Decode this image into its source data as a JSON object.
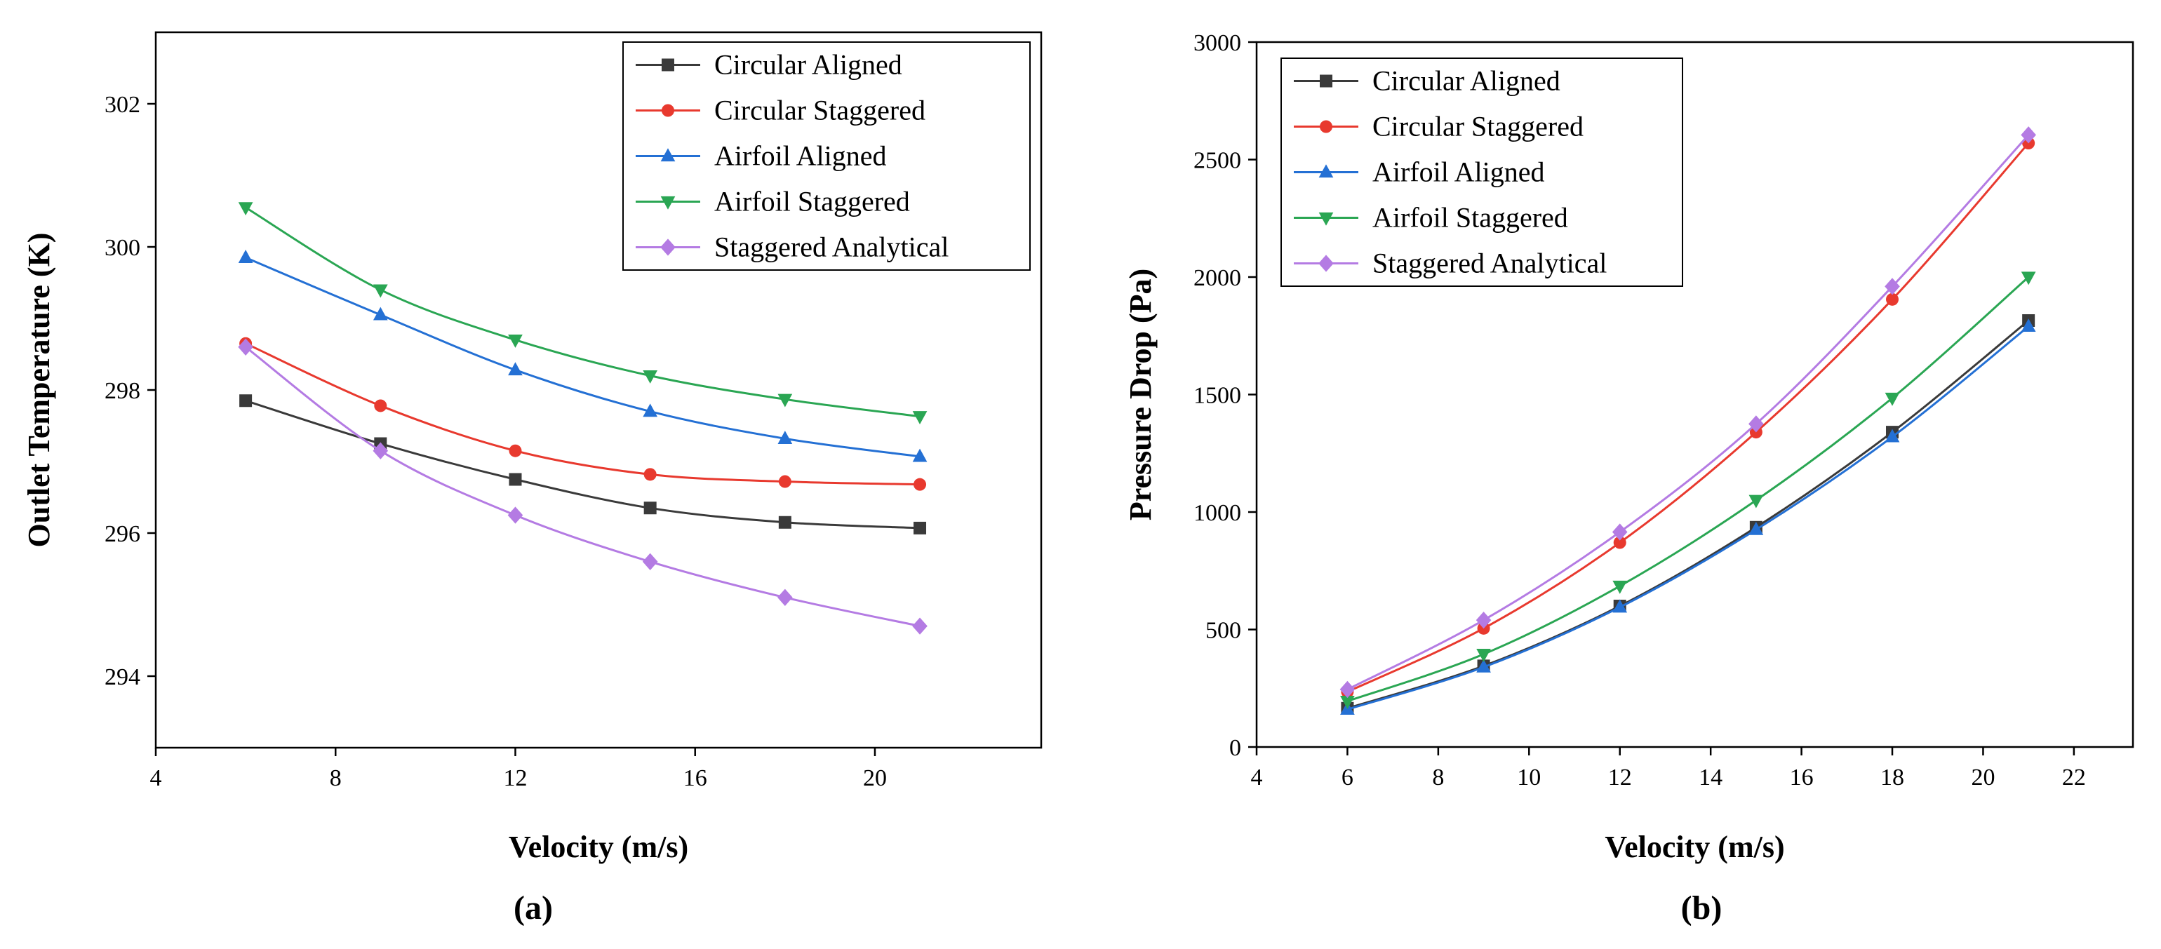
{
  "figure_labels": {
    "a": "(a)",
    "b": "(b)"
  },
  "chart_data": [
    {
      "id": "a",
      "type": "line",
      "panel_label": "(a)",
      "title": "",
      "xlabel": "Velocity (m/s)",
      "ylabel": "Outlet Temperature (K)",
      "xlim": [
        4,
        23.7
      ],
      "ylim": [
        293,
        303
      ],
      "xticks": [
        4,
        8,
        12,
        16,
        20
      ],
      "yticks": [
        294,
        296,
        298,
        300,
        302
      ],
      "legend_position": "top-right",
      "grid": false,
      "x": [
        6,
        9,
        12,
        15,
        18,
        21
      ],
      "series": [
        {
          "name": "Circular Aligned",
          "color": "#3a3a3a",
          "marker": "square",
          "values": [
            297.85,
            297.25,
            296.75,
            296.35,
            296.15,
            296.07
          ]
        },
        {
          "name": "Circular Staggered",
          "color": "#e8392e",
          "marker": "circle",
          "values": [
            298.65,
            297.78,
            297.15,
            296.82,
            296.72,
            296.68
          ]
        },
        {
          "name": "Airfoil Aligned",
          "color": "#2470d4",
          "marker": "triangle-up",
          "values": [
            299.85,
            299.05,
            298.28,
            297.7,
            297.32,
            297.07
          ]
        },
        {
          "name": "Airfoil Staggered",
          "color": "#2aa653",
          "marker": "triangle-down",
          "values": [
            300.55,
            299.4,
            298.7,
            298.2,
            297.87,
            297.63
          ]
        },
        {
          "name": "Staggered Analytical",
          "color": "#b47be3",
          "marker": "diamond",
          "values": [
            298.6,
            297.15,
            296.25,
            295.6,
            295.1,
            294.7
          ]
        }
      ]
    },
    {
      "id": "b",
      "type": "line",
      "panel_label": "(b)",
      "title": "",
      "xlabel": "Velocity (m/s)",
      "ylabel": "Pressure Drop (Pa)",
      "xlim": [
        4,
        23.3
      ],
      "ylim": [
        0,
        3000
      ],
      "xticks": [
        4,
        6,
        8,
        10,
        12,
        14,
        16,
        18,
        20,
        22
      ],
      "yticks": [
        0,
        500,
        1000,
        1500,
        2000,
        2500,
        3000
      ],
      "legend_position": "top-left",
      "grid": false,
      "x": [
        6,
        9,
        12,
        15,
        18,
        21
      ],
      "series": [
        {
          "name": "Circular Aligned",
          "color": "#3a3a3a",
          "marker": "square",
          "values": [
            165,
            345,
            600,
            935,
            1340,
            1815
          ]
        },
        {
          "name": "Circular Staggered",
          "color": "#e8392e",
          "marker": "circle",
          "values": [
            235,
            505,
            870,
            1340,
            1905,
            2570
          ]
        },
        {
          "name": "Airfoil Aligned",
          "color": "#2470d4",
          "marker": "triangle-up",
          "values": [
            160,
            340,
            595,
            925,
            1320,
            1790
          ]
        },
        {
          "name": "Airfoil Staggered",
          "color": "#2aa653",
          "marker": "triangle-down",
          "values": [
            195,
            395,
            685,
            1050,
            1485,
            2000
          ]
        },
        {
          "name": "Staggered Analytical",
          "color": "#b47be3",
          "marker": "diamond",
          "values": [
            245,
            540,
            915,
            1375,
            1960,
            2605
          ]
        }
      ]
    }
  ]
}
